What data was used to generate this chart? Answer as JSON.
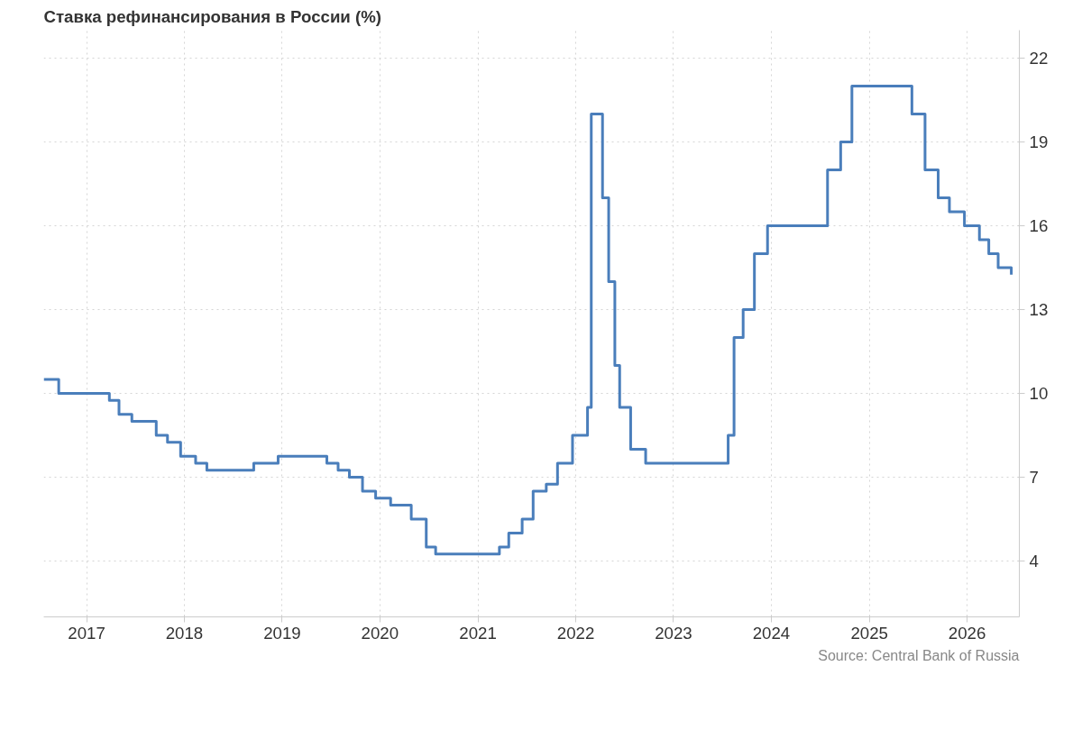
{
  "chart_data": {
    "type": "step",
    "title": "Ставка рефинансирования в России (%)",
    "x": [
      "2016-07-25",
      "2016-09-19",
      "2017-03-27",
      "2017-05-02",
      "2017-06-19",
      "2017-09-18",
      "2017-10-30",
      "2017-12-18",
      "2018-02-12",
      "2018-03-26",
      "2018-09-17",
      "2018-12-17",
      "2019-06-17",
      "2019-07-29",
      "2019-09-09",
      "2019-10-28",
      "2019-12-16",
      "2020-02-10",
      "2020-04-27",
      "2020-06-22",
      "2020-07-27",
      "2021-03-22",
      "2021-04-26",
      "2021-06-15",
      "2021-07-26",
      "2021-09-13",
      "2021-10-25",
      "2021-12-20",
      "2022-02-14",
      "2022-02-28",
      "2022-04-11",
      "2022-05-04",
      "2022-05-27",
      "2022-06-14",
      "2022-07-25",
      "2022-09-19",
      "2023-07-24",
      "2023-08-15",
      "2023-09-18",
      "2023-10-30",
      "2023-12-18",
      "2024-07-29",
      "2024-09-16",
      "2024-10-28",
      "2025-06-09",
      "2025-07-28",
      "2025-09-15",
      "2025-10-27",
      "2025-12-22",
      "2026-02-16",
      "2026-03-23",
      "2026-04-27",
      "2026-06-15"
    ],
    "series": [
      {
        "color": "#4a7ebb",
        "values": [
          10.5,
          10,
          9.75,
          9.25,
          9,
          8.5,
          8.25,
          7.75,
          7.5,
          7.25,
          7.5,
          7.75,
          7.5,
          7.25,
          7,
          6.5,
          6.25,
          6,
          5.5,
          4.5,
          4.25,
          4.5,
          5,
          5.5,
          6.5,
          6.75,
          7.5,
          8.5,
          9.5,
          20,
          17,
          14,
          11,
          9.5,
          8,
          7.5,
          8.5,
          12,
          13,
          15,
          16,
          18,
          19,
          21,
          20,
          18,
          17,
          16.5,
          16,
          15.5,
          15,
          14.5,
          14.25
        ]
      }
    ],
    "xlim": [
      "2016-07-25",
      "2026-07-15"
    ],
    "xticks": [
      "2017",
      "2018",
      "2019",
      "2020",
      "2021",
      "2022",
      "2023",
      "2024",
      "2025",
      "2026"
    ],
    "ylim": [
      2,
      23
    ],
    "yticks": [
      4,
      7,
      10,
      13,
      16,
      19,
      22
    ],
    "grid": true,
    "line_style": "solid",
    "annotations": [
      "Source: Central Bank of Russia"
    ]
  }
}
